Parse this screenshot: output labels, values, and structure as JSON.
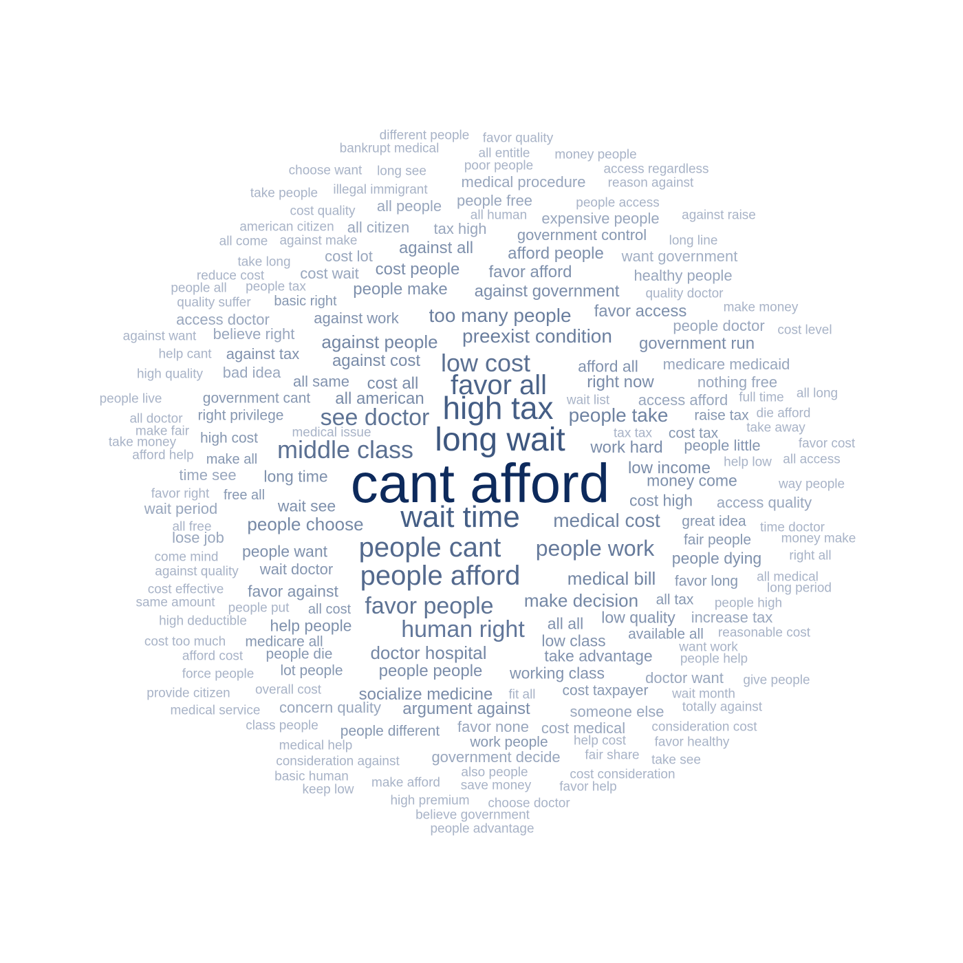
{
  "chart_data": {
    "type": "wordcloud",
    "title": "",
    "words": [
      {
        "text": "cant afford",
        "weight": 1.0,
        "color": "#0d2a5c"
      },
      {
        "text": "long wait",
        "weight": 0.62,
        "color": "#3e577f"
      },
      {
        "text": "high tax",
        "weight": 0.6,
        "color": "#455e85"
      },
      {
        "text": "wait time",
        "weight": 0.58,
        "color": "#455e85"
      },
      {
        "text": "favor all",
        "weight": 0.55,
        "color": "#4c6489"
      },
      {
        "text": "people cant",
        "weight": 0.52,
        "color": "#53698d"
      },
      {
        "text": "people afford",
        "weight": 0.52,
        "color": "#53698d"
      },
      {
        "text": "middle class",
        "weight": 0.48,
        "color": "#5b7092"
      },
      {
        "text": "low cost",
        "weight": 0.48,
        "color": "#5b7092"
      },
      {
        "text": "see doctor",
        "weight": 0.46,
        "color": "#5e7394"
      },
      {
        "text": "favor people",
        "weight": 0.46,
        "color": "#5e7394"
      },
      {
        "text": "human right",
        "weight": 0.44,
        "color": "#62779a"
      },
      {
        "text": "people work",
        "weight": 0.42,
        "color": "#667a9b"
      },
      {
        "text": "too many people",
        "weight": 0.4,
        "color": "#6a7e9e"
      },
      {
        "text": "preexist condition",
        "weight": 0.4,
        "color": "#6a7e9e"
      },
      {
        "text": "people take",
        "weight": 0.38,
        "color": "#6e82a1"
      },
      {
        "text": "medical cost",
        "weight": 0.38,
        "color": "#6e82a1"
      },
      {
        "text": "against people",
        "weight": 0.36,
        "color": "#7285a3"
      },
      {
        "text": "medical bill",
        "weight": 0.36,
        "color": "#7285a3"
      },
      {
        "text": "make decision",
        "weight": 0.35,
        "color": "#7487a5"
      },
      {
        "text": "doctor hospital",
        "weight": 0.35,
        "color": "#7487a5"
      },
      {
        "text": "people choose",
        "weight": 0.34,
        "color": "#7689a6"
      },
      {
        "text": "socialize medicine",
        "weight": 0.33,
        "color": "#798ba8"
      },
      {
        "text": "against cost",
        "weight": 0.33,
        "color": "#798ba8"
      },
      {
        "text": "right now",
        "weight": 0.33,
        "color": "#798ba8"
      },
      {
        "text": "cost all",
        "weight": 0.33,
        "color": "#798ba8"
      },
      {
        "text": "low income",
        "weight": 0.33,
        "color": "#798ba8"
      },
      {
        "text": "all american",
        "weight": 0.33,
        "color": "#798ba8"
      },
      {
        "text": "government run",
        "weight": 0.32,
        "color": "#7b8daa"
      },
      {
        "text": "work hard",
        "weight": 0.32,
        "color": "#7b8daa"
      },
      {
        "text": "people people",
        "weight": 0.32,
        "color": "#7b8daa"
      },
      {
        "text": "argument against",
        "weight": 0.32,
        "color": "#7b8daa"
      },
      {
        "text": "cost people",
        "weight": 0.32,
        "color": "#7b8daa"
      },
      {
        "text": "against government",
        "weight": 0.32,
        "color": "#7b8daa"
      },
      {
        "text": "favor access",
        "weight": 0.31,
        "color": "#7e90ac"
      },
      {
        "text": "afford people",
        "weight": 0.31,
        "color": "#7e90ac"
      },
      {
        "text": "favor afford",
        "weight": 0.31,
        "color": "#7e90ac"
      },
      {
        "text": "people make",
        "weight": 0.31,
        "color": "#7e90ac"
      },
      {
        "text": "against all",
        "weight": 0.31,
        "color": "#7e90ac"
      },
      {
        "text": "people dying",
        "weight": 0.31,
        "color": "#7e90ac"
      },
      {
        "text": "cost high",
        "weight": 0.31,
        "color": "#7e90ac"
      },
      {
        "text": "money come",
        "weight": 0.31,
        "color": "#7e90ac"
      },
      {
        "text": "long time",
        "weight": 0.31,
        "color": "#7e90ac"
      },
      {
        "text": "wait see",
        "weight": 0.31,
        "color": "#7e90ac"
      },
      {
        "text": "people want",
        "weight": 0.31,
        "color": "#7e90ac"
      },
      {
        "text": "favor against",
        "weight": 0.31,
        "color": "#7e90ac"
      },
      {
        "text": "help people",
        "weight": 0.31,
        "color": "#7e90ac"
      },
      {
        "text": "low quality",
        "weight": 0.3,
        "color": "#8192ae"
      },
      {
        "text": "all all",
        "weight": 0.3,
        "color": "#8192ae"
      },
      {
        "text": "low class",
        "weight": 0.3,
        "color": "#8192ae"
      },
      {
        "text": "take advantage",
        "weight": 0.3,
        "color": "#8192ae"
      },
      {
        "text": "working class",
        "weight": 0.3,
        "color": "#8192ae"
      },
      {
        "text": "afford all",
        "weight": 0.3,
        "color": "#8192ae"
      },
      {
        "text": "against work",
        "weight": 0.3,
        "color": "#8192ae"
      },
      {
        "text": "against tax",
        "weight": 0.3,
        "color": "#8192ae"
      },
      {
        "text": "all same",
        "weight": 0.3,
        "color": "#8192ae"
      },
      {
        "text": "wait doctor",
        "weight": 0.29,
        "color": "#8495b0"
      },
      {
        "text": "people little",
        "weight": 0.29,
        "color": "#8495b0"
      },
      {
        "text": "government control",
        "weight": 0.28,
        "color": "#8697b1"
      },
      {
        "text": "government cant",
        "weight": 0.28,
        "color": "#8697b1"
      },
      {
        "text": "right privilege",
        "weight": 0.28,
        "color": "#8697b1"
      },
      {
        "text": "fair people",
        "weight": 0.28,
        "color": "#8697b1"
      },
      {
        "text": "raise tax",
        "weight": 0.28,
        "color": "#8697b1"
      },
      {
        "text": "cost tax",
        "weight": 0.28,
        "color": "#8697b1"
      },
      {
        "text": "great idea",
        "weight": 0.28,
        "color": "#8697b1"
      },
      {
        "text": "favor long",
        "weight": 0.28,
        "color": "#8697b1"
      },
      {
        "text": "all tax",
        "weight": 0.28,
        "color": "#8697b1"
      },
      {
        "text": "available all",
        "weight": 0.28,
        "color": "#8697b1"
      },
      {
        "text": "cost taxpayer",
        "weight": 0.28,
        "color": "#8697b1"
      },
      {
        "text": "work people",
        "weight": 0.28,
        "color": "#8697b1"
      },
      {
        "text": "people different",
        "weight": 0.28,
        "color": "#8697b1"
      },
      {
        "text": "people die",
        "weight": 0.28,
        "color": "#8697b1"
      },
      {
        "text": "medicare all",
        "weight": 0.28,
        "color": "#8697b1"
      },
      {
        "text": "lot people",
        "weight": 0.28,
        "color": "#8697b1"
      },
      {
        "text": "all cost",
        "weight": 0.28,
        "color": "#8697b1"
      },
      {
        "text": "free all",
        "weight": 0.28,
        "color": "#8697b1"
      },
      {
        "text": "make all",
        "weight": 0.28,
        "color": "#8697b1"
      },
      {
        "text": "high cost",
        "weight": 0.28,
        "color": "#8697b1"
      },
      {
        "text": "basic right",
        "weight": 0.28,
        "color": "#8697b1"
      },
      {
        "text": "medical procedure",
        "weight": 0.28,
        "color": "#98a6bd"
      },
      {
        "text": "all people",
        "weight": 0.28,
        "color": "#98a6bd"
      },
      {
        "text": "people free",
        "weight": 0.28,
        "color": "#98a6bd"
      },
      {
        "text": "expensive people",
        "weight": 0.28,
        "color": "#98a6bd"
      },
      {
        "text": "all citizen",
        "weight": 0.28,
        "color": "#98a6bd"
      },
      {
        "text": "tax high",
        "weight": 0.28,
        "color": "#98a6bd"
      },
      {
        "text": "want government",
        "weight": 0.27,
        "color": "#a2afc4"
      },
      {
        "text": "healthy people",
        "weight": 0.28,
        "color": "#98a6bd"
      },
      {
        "text": "cost lot",
        "weight": 0.28,
        "color": "#98a6bd"
      },
      {
        "text": "cost wait",
        "weight": 0.28,
        "color": "#98a6bd"
      },
      {
        "text": "access doctor",
        "weight": 0.28,
        "color": "#98a6bd"
      },
      {
        "text": "believe right",
        "weight": 0.28,
        "color": "#98a6bd"
      },
      {
        "text": "bad idea",
        "weight": 0.28,
        "color": "#98a6bd"
      },
      {
        "text": "people doctor",
        "weight": 0.28,
        "color": "#98a6bd"
      },
      {
        "text": "medicare medicaid",
        "weight": 0.28,
        "color": "#98a6bd"
      },
      {
        "text": "nothing free",
        "weight": 0.28,
        "color": "#98a6bd"
      },
      {
        "text": "access afford",
        "weight": 0.28,
        "color": "#98a6bd"
      },
      {
        "text": "access quality",
        "weight": 0.28,
        "color": "#98a6bd"
      },
      {
        "text": "time see",
        "weight": 0.28,
        "color": "#98a6bd"
      },
      {
        "text": "wait period",
        "weight": 0.28,
        "color": "#98a6bd"
      },
      {
        "text": "lose job",
        "weight": 0.28,
        "color": "#98a6bd"
      },
      {
        "text": "increase tax",
        "weight": 0.28,
        "color": "#98a6bd"
      },
      {
        "text": "doctor want",
        "weight": 0.28,
        "color": "#98a6bd"
      },
      {
        "text": "someone else",
        "weight": 0.28,
        "color": "#98a6bd"
      },
      {
        "text": "concern quality",
        "weight": 0.28,
        "color": "#98a6bd"
      },
      {
        "text": "favor none",
        "weight": 0.28,
        "color": "#98a6bd"
      },
      {
        "text": "cost medical",
        "weight": 0.28,
        "color": "#98a6bd"
      },
      {
        "text": "government decide",
        "weight": 0.28,
        "color": "#98a6bd"
      },
      {
        "text": "different people",
        "weight": 0.27,
        "color": "#a8b3c7"
      },
      {
        "text": "favor quality",
        "weight": 0.27,
        "color": "#a8b3c7"
      },
      {
        "text": "bankrupt medical",
        "weight": 0.27,
        "color": "#a8b3c7"
      },
      {
        "text": "all entitle",
        "weight": 0.27,
        "color": "#a8b3c7"
      },
      {
        "text": "money people",
        "weight": 0.27,
        "color": "#a8b3c7"
      },
      {
        "text": "choose want",
        "weight": 0.27,
        "color": "#a8b3c7"
      },
      {
        "text": "long see",
        "weight": 0.27,
        "color": "#a8b3c7"
      },
      {
        "text": "poor people",
        "weight": 0.27,
        "color": "#a8b3c7"
      },
      {
        "text": "access regardless",
        "weight": 0.27,
        "color": "#a8b3c7"
      },
      {
        "text": "take people",
        "weight": 0.27,
        "color": "#a8b3c7"
      },
      {
        "text": "illegal immigrant",
        "weight": 0.27,
        "color": "#a8b3c7"
      },
      {
        "text": "reason against",
        "weight": 0.27,
        "color": "#a8b3c7"
      },
      {
        "text": "cost quality",
        "weight": 0.27,
        "color": "#a8b3c7"
      },
      {
        "text": "people access",
        "weight": 0.27,
        "color": "#a8b3c7"
      },
      {
        "text": "all human",
        "weight": 0.27,
        "color": "#a8b3c7"
      },
      {
        "text": "against raise",
        "weight": 0.27,
        "color": "#a8b3c7"
      },
      {
        "text": "american citizen",
        "weight": 0.27,
        "color": "#a8b3c7"
      },
      {
        "text": "all come",
        "weight": 0.27,
        "color": "#a8b3c7"
      },
      {
        "text": "against make",
        "weight": 0.27,
        "color": "#a8b3c7"
      },
      {
        "text": "long line",
        "weight": 0.27,
        "color": "#a8b3c7"
      },
      {
        "text": "take long",
        "weight": 0.27,
        "color": "#a8b3c7"
      },
      {
        "text": "reduce cost",
        "weight": 0.27,
        "color": "#a8b3c7"
      },
      {
        "text": "people all",
        "weight": 0.27,
        "color": "#a8b3c7"
      },
      {
        "text": "people tax",
        "weight": 0.27,
        "color": "#a8b3c7"
      },
      {
        "text": "quality suffer",
        "weight": 0.27,
        "color": "#a8b3c7"
      },
      {
        "text": "quality doctor",
        "weight": 0.27,
        "color": "#a8b3c7"
      },
      {
        "text": "make money",
        "weight": 0.27,
        "color": "#a8b3c7"
      },
      {
        "text": "cost level",
        "weight": 0.27,
        "color": "#a8b3c7"
      },
      {
        "text": "against want",
        "weight": 0.27,
        "color": "#a8b3c7"
      },
      {
        "text": "help cant",
        "weight": 0.27,
        "color": "#a8b3c7"
      },
      {
        "text": "high quality",
        "weight": 0.27,
        "color": "#a8b3c7"
      },
      {
        "text": "people live",
        "weight": 0.27,
        "color": "#a8b3c7"
      },
      {
        "text": "wait list",
        "weight": 0.27,
        "color": "#a8b3c7"
      },
      {
        "text": "full time",
        "weight": 0.27,
        "color": "#a8b3c7"
      },
      {
        "text": "all long",
        "weight": 0.27,
        "color": "#a8b3c7"
      },
      {
        "text": "all doctor",
        "weight": 0.27,
        "color": "#a8b3c7"
      },
      {
        "text": "die afford",
        "weight": 0.27,
        "color": "#a8b3c7"
      },
      {
        "text": "make fair",
        "weight": 0.27,
        "color": "#a8b3c7"
      },
      {
        "text": "medical issue",
        "weight": 0.27,
        "color": "#a8b3c7"
      },
      {
        "text": "tax tax",
        "weight": 0.27,
        "color": "#a8b3c7"
      },
      {
        "text": "take away",
        "weight": 0.27,
        "color": "#a8b3c7"
      },
      {
        "text": "take money",
        "weight": 0.27,
        "color": "#a8b3c7"
      },
      {
        "text": "favor cost",
        "weight": 0.27,
        "color": "#a8b3c7"
      },
      {
        "text": "afford help",
        "weight": 0.27,
        "color": "#a8b3c7"
      },
      {
        "text": "help low",
        "weight": 0.27,
        "color": "#a8b3c7"
      },
      {
        "text": "all access",
        "weight": 0.27,
        "color": "#a8b3c7"
      },
      {
        "text": "way people",
        "weight": 0.27,
        "color": "#a8b3c7"
      },
      {
        "text": "favor right",
        "weight": 0.27,
        "color": "#a8b3c7"
      },
      {
        "text": "all free",
        "weight": 0.27,
        "color": "#a8b3c7"
      },
      {
        "text": "time doctor",
        "weight": 0.27,
        "color": "#a8b3c7"
      },
      {
        "text": "money make",
        "weight": 0.27,
        "color": "#a8b3c7"
      },
      {
        "text": "come mind",
        "weight": 0.27,
        "color": "#a8b3c7"
      },
      {
        "text": "right all",
        "weight": 0.27,
        "color": "#a8b3c7"
      },
      {
        "text": "against quality",
        "weight": 0.27,
        "color": "#a8b3c7"
      },
      {
        "text": "all medical",
        "weight": 0.27,
        "color": "#a8b3c7"
      },
      {
        "text": "cost effective",
        "weight": 0.27,
        "color": "#a8b3c7"
      },
      {
        "text": "long period",
        "weight": 0.27,
        "color": "#a8b3c7"
      },
      {
        "text": "same amount",
        "weight": 0.27,
        "color": "#a8b3c7"
      },
      {
        "text": "people put",
        "weight": 0.27,
        "color": "#a8b3c7"
      },
      {
        "text": "people high",
        "weight": 0.27,
        "color": "#a8b3c7"
      },
      {
        "text": "high deductible",
        "weight": 0.27,
        "color": "#a8b3c7"
      },
      {
        "text": "reasonable cost",
        "weight": 0.27,
        "color": "#a8b3c7"
      },
      {
        "text": "cost too much",
        "weight": 0.27,
        "color": "#a8b3c7"
      },
      {
        "text": "want work",
        "weight": 0.27,
        "color": "#a8b3c7"
      },
      {
        "text": "afford cost",
        "weight": 0.27,
        "color": "#a8b3c7"
      },
      {
        "text": "people help",
        "weight": 0.27,
        "color": "#a8b3c7"
      },
      {
        "text": "force people",
        "weight": 0.27,
        "color": "#a8b3c7"
      },
      {
        "text": "give people",
        "weight": 0.27,
        "color": "#a8b3c7"
      },
      {
        "text": "provide citizen",
        "weight": 0.27,
        "color": "#a8b3c7"
      },
      {
        "text": "overall cost",
        "weight": 0.27,
        "color": "#a8b3c7"
      },
      {
        "text": "fit all",
        "weight": 0.27,
        "color": "#a8b3c7"
      },
      {
        "text": "wait month",
        "weight": 0.27,
        "color": "#a8b3c7"
      },
      {
        "text": "medical service",
        "weight": 0.27,
        "color": "#a8b3c7"
      },
      {
        "text": "totally against",
        "weight": 0.27,
        "color": "#a8b3c7"
      },
      {
        "text": "class people",
        "weight": 0.27,
        "color": "#a8b3c7"
      },
      {
        "text": "consideration cost",
        "weight": 0.27,
        "color": "#a8b3c7"
      },
      {
        "text": "medical help",
        "weight": 0.27,
        "color": "#a8b3c7"
      },
      {
        "text": "help cost",
        "weight": 0.27,
        "color": "#a8b3c7"
      },
      {
        "text": "favor healthy",
        "weight": 0.27,
        "color": "#a8b3c7"
      },
      {
        "text": "consideration against",
        "weight": 0.27,
        "color": "#a8b3c7"
      },
      {
        "text": "fair share",
        "weight": 0.27,
        "color": "#a8b3c7"
      },
      {
        "text": "take see",
        "weight": 0.27,
        "color": "#a8b3c7"
      },
      {
        "text": "basic human",
        "weight": 0.27,
        "color": "#a8b3c7"
      },
      {
        "text": "also people",
        "weight": 0.27,
        "color": "#a8b3c7"
      },
      {
        "text": "cost consideration",
        "weight": 0.27,
        "color": "#a8b3c7"
      },
      {
        "text": "make afford",
        "weight": 0.27,
        "color": "#a8b3c7"
      },
      {
        "text": "save money",
        "weight": 0.27,
        "color": "#a8b3c7"
      },
      {
        "text": "favor help",
        "weight": 0.27,
        "color": "#a8b3c7"
      },
      {
        "text": "keep low",
        "weight": 0.27,
        "color": "#a8b3c7"
      },
      {
        "text": "high premium",
        "weight": 0.27,
        "color": "#a8b3c7"
      },
      {
        "text": "choose doctor",
        "weight": 0.27,
        "color": "#a8b3c7"
      },
      {
        "text": "believe government",
        "weight": 0.27,
        "color": "#a8b3c7"
      },
      {
        "text": "people advantage",
        "weight": 0.27,
        "color": "#a8b3c7"
      }
    ]
  }
}
